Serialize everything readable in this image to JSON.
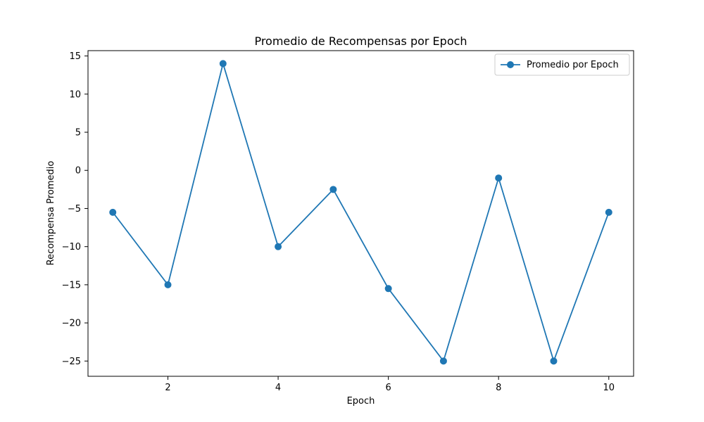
{
  "chart_data": {
    "type": "line",
    "title": "Promedio de Recompensas por Epoch",
    "xlabel": "Epoch",
    "ylabel": "Recompensa Promedio",
    "x": [
      1,
      2,
      3,
      4,
      5,
      6,
      7,
      8,
      9,
      10
    ],
    "series": [
      {
        "name": "Promedio por Epoch",
        "values": [
          -5.5,
          -15,
          14,
          -10,
          -2.5,
          -15.5,
          -25,
          -1,
          -25,
          -5.5
        ]
      }
    ],
    "xlim": [
      0.55,
      10.45
    ],
    "ylim": [
      -27,
      15.7
    ],
    "xticks": [
      2,
      4,
      6,
      8,
      10
    ],
    "yticks": [
      15,
      10,
      5,
      0,
      -5,
      -10,
      -15,
      -20,
      -25
    ],
    "xtick_labels": [
      "2",
      "4",
      "6",
      "8",
      "10"
    ],
    "ytick_labels": [
      "15",
      "10",
      "5",
      "0",
      "−5",
      "−10",
      "−15",
      "−20",
      "−25"
    ],
    "legend": {
      "placement": "top-right"
    },
    "grid": false,
    "colors": {
      "series": "#1f77b4",
      "axes": "#000000",
      "background": "#ffffff"
    }
  }
}
